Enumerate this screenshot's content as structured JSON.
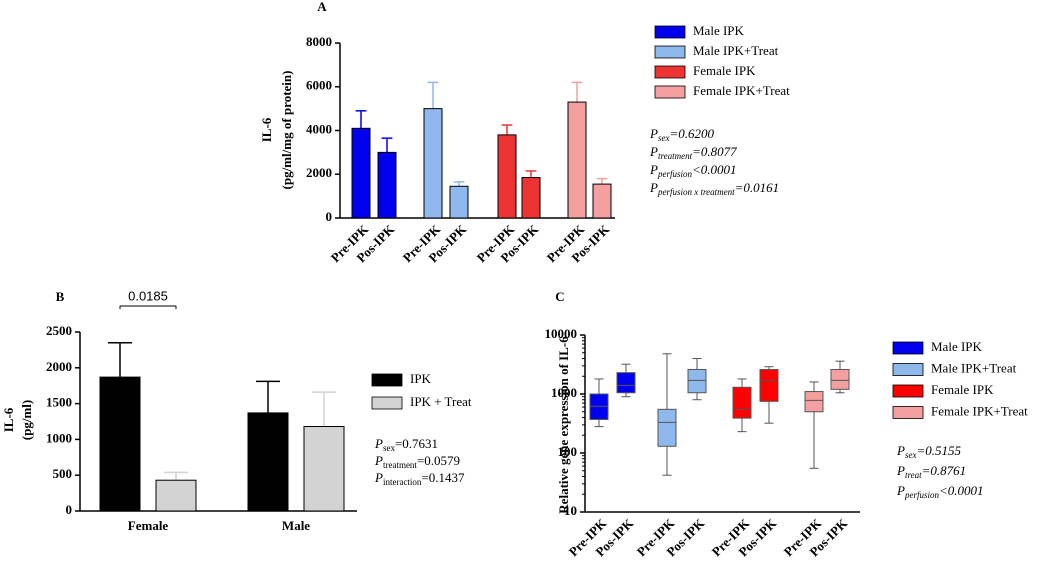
{
  "chart_data": [
    {
      "type": "bar",
      "title": "A",
      "ylabel": [
        "IL-6",
        "(pg/ml/mg of protein)"
      ],
      "categories": [
        "Pre-IPK",
        "Pos-IPK"
      ],
      "series": [
        {
          "name": "Male IPK",
          "color": "#0000ee",
          "values": [
            4100,
            3000
          ],
          "errors": [
            800,
            650
          ]
        },
        {
          "name": "Male IPK+Treat",
          "color": "#8fb8ec",
          "values": [
            5000,
            1450
          ],
          "errors": [
            1200,
            200
          ]
        },
        {
          "name": "Female IPK",
          "color": "#ee3333",
          "values": [
            3800,
            1850
          ],
          "errors": [
            450,
            300
          ]
        },
        {
          "name": "Female IPK+Treat",
          "color": "#f4a0a0",
          "values": [
            5300,
            1550
          ],
          "errors": [
            900,
            250
          ]
        }
      ],
      "ylim": [
        0,
        8000
      ],
      "yticks": [
        0,
        2000,
        4000,
        6000,
        8000
      ],
      "annotations": [
        {
          "prefix": "P",
          "sub": "sex",
          "suffix": "=0.6200"
        },
        {
          "prefix": "P",
          "sub": "treatment",
          "suffix": "=0.8077"
        },
        {
          "prefix": "P",
          "sub": "perfusion",
          "suffix": "<0.0001"
        },
        {
          "prefix": "P",
          "sub": "perfusion x treatment",
          "suffix": "=0.0161"
        }
      ]
    },
    {
      "type": "bar",
      "title": "B",
      "ylabel": [
        "IL-6",
        "(pg/ml)"
      ],
      "categories": [
        "Female",
        "Male"
      ],
      "series": [
        {
          "name": "IPK",
          "color": "#000000",
          "values": [
            1870,
            1370
          ],
          "errors": [
            480,
            440
          ]
        },
        {
          "name": "IPK + Treat",
          "color": "#d3d3d3",
          "values": [
            430,
            1180
          ],
          "errors": [
            110,
            480
          ]
        }
      ],
      "ylim": [
        0,
        2500
      ],
      "yticks": [
        0,
        500,
        1000,
        1500,
        2000,
        2500
      ],
      "significance": {
        "text": "0.0185"
      },
      "annotations": [
        {
          "prefix": "P",
          "sub": "sex",
          "suffix": "=0.7631"
        },
        {
          "prefix": "P",
          "sub": "treatment",
          "suffix": "=0.0579"
        },
        {
          "prefix": "P",
          "sub": "interaction",
          "suffix": "=0.1437"
        }
      ]
    },
    {
      "type": "box",
      "title": "C",
      "ylabel": [
        "Relative gene expression of  IL-6"
      ],
      "categories": [
        "Pre-IPK",
        "Pos-IPK"
      ],
      "log_scale": true,
      "series": [
        {
          "name": "Male IPK",
          "color": "#0000ee",
          "values": [
            {
              "min": 280,
              "q1": 370,
              "median": 620,
              "q3": 1000,
              "max": 1800
            },
            {
              "min": 900,
              "q1": 1050,
              "median": 1400,
              "q3": 2300,
              "max": 3200
            }
          ]
        },
        {
          "name": "Male IPK+Treat",
          "color": "#8fb8ec",
          "values": [
            {
              "min": 42,
              "q1": 130,
              "median": 330,
              "q3": 550,
              "max": 4800
            },
            {
              "min": 800,
              "q1": 1050,
              "median": 1700,
              "q3": 2600,
              "max": 4000
            }
          ]
        },
        {
          "name": "Female IPK",
          "color": "#ff0000",
          "values": [
            {
              "min": 230,
              "q1": 390,
              "median": 550,
              "q3": 1300,
              "max": 1800
            },
            {
              "min": 320,
              "q1": 750,
              "median": 1700,
              "q3": 2600,
              "max": 2900
            }
          ]
        },
        {
          "name": "Female IPK+Treat",
          "color": "#f4a0a0",
          "values": [
            {
              "min": 55,
              "q1": 500,
              "median": 780,
              "q3": 1100,
              "max": 1600
            },
            {
              "min": 1050,
              "q1": 1200,
              "median": 1700,
              "q3": 2600,
              "max": 3600
            }
          ]
        }
      ],
      "ylim": [
        10,
        10000
      ],
      "yticks": [
        10,
        100,
        1000,
        10000
      ],
      "annotations": [
        {
          "prefix": "P",
          "sub": "sex",
          "suffix": "=0.5155"
        },
        {
          "prefix": "P",
          "sub": "treat",
          "suffix": "=0.8761"
        },
        {
          "prefix": "P",
          "sub": "perfusion",
          "suffix": "<0.0001"
        }
      ]
    }
  ]
}
